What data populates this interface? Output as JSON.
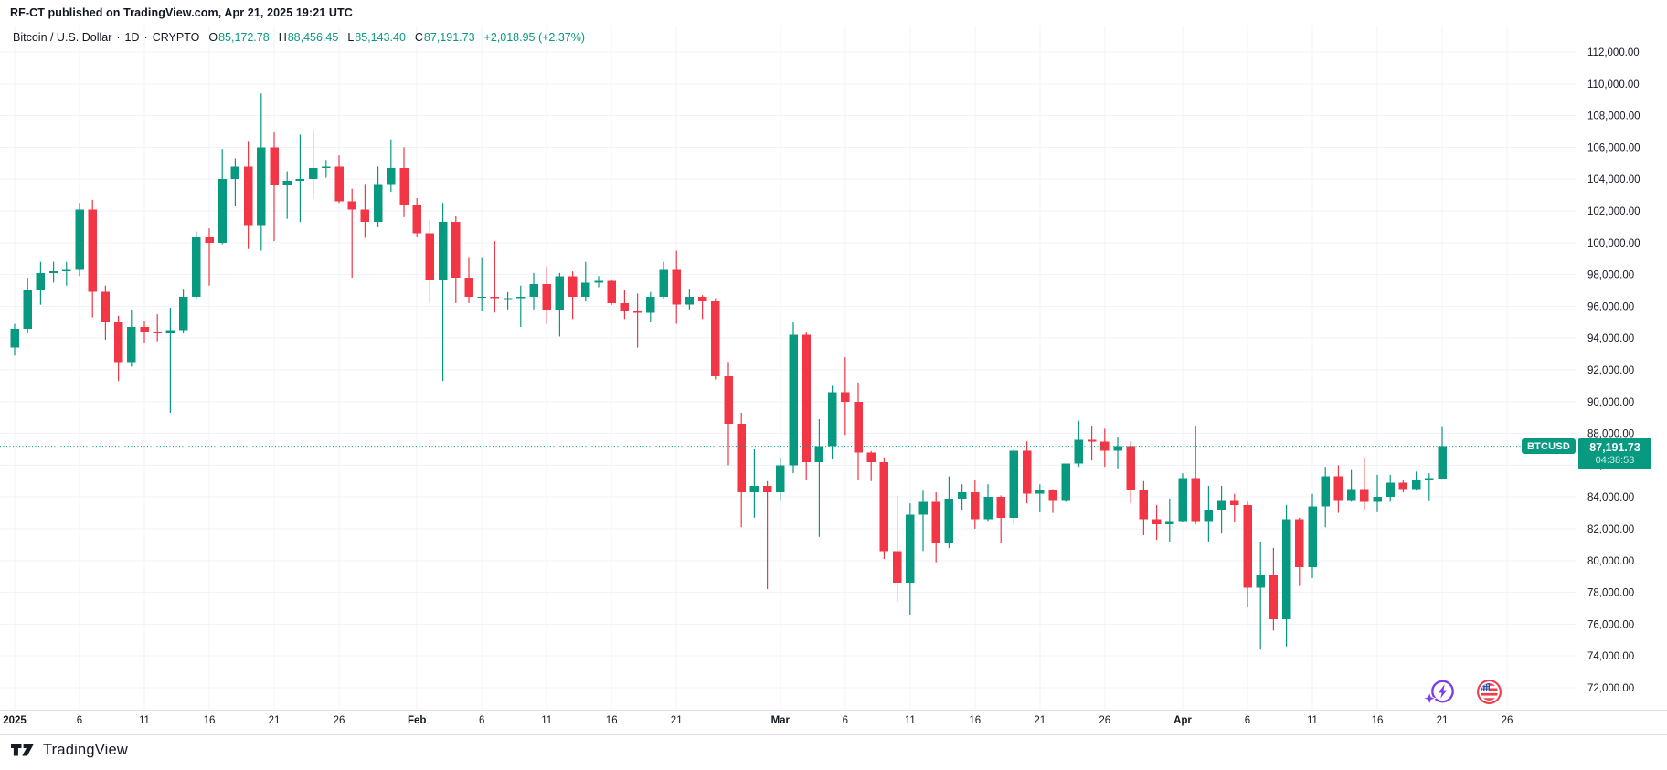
{
  "published_line": "RF-CT published on TradingView.com, Apr 21, 2025 19:21 UTC",
  "legend": {
    "symbol": "Bitcoin / U.S. Dollar",
    "separator": "·",
    "interval": "1D",
    "exchange": "CRYPTO",
    "o_label": "O",
    "o_value": "85,172.78",
    "h_label": "H",
    "h_value": "88,456.45",
    "l_label": "L",
    "l_value": "85,143.40",
    "c_label": "C",
    "c_value": "87,191.73",
    "change": "+2,018.95 (+2.37%)"
  },
  "price_label": {
    "symbol": "BTCUSD",
    "price": "87,191.73",
    "countdown": "04:38:53"
  },
  "footer": {
    "logo_text": "TradingView"
  },
  "icons": [
    {
      "name": "spark-lightning-stamp"
    },
    {
      "name": "us-flag-stamp"
    }
  ],
  "colors": {
    "up": "#089981",
    "down": "#f23645",
    "grid": "#f0f3fa",
    "border": "#e0e3eb",
    "text": "#131722",
    "accent": "#089981",
    "label_box": "#089981"
  },
  "chart_data": {
    "type": "candlestick",
    "title": "Bitcoin / U.S. Dollar",
    "symbol": "BTCUSD",
    "interval": "1D",
    "exchange": "CRYPTO",
    "last_price": 87191.73,
    "countdown": "04:38:53",
    "grid": true,
    "ylim": [
      72000,
      112000
    ],
    "y_tick_step": 2000,
    "x_range": "Jan 1 2025 - Apr 26 2025",
    "y_ticks": [
      {
        "price": 112000,
        "label": "112,000.00"
      },
      {
        "price": 110000,
        "label": "110,000.00"
      },
      {
        "price": 108000,
        "label": "108,000.00"
      },
      {
        "price": 106000,
        "label": "106,000.00"
      },
      {
        "price": 104000,
        "label": "104,000.00"
      },
      {
        "price": 102000,
        "label": "102,000.00"
      },
      {
        "price": 100000,
        "label": "100,000.00"
      },
      {
        "price": 98000,
        "label": "98,000.00"
      },
      {
        "price": 96000,
        "label": "96,000.00"
      },
      {
        "price": 94000,
        "label": "94,000.00"
      },
      {
        "price": 92000,
        "label": "92,000.00"
      },
      {
        "price": 90000,
        "label": "90,000.00"
      },
      {
        "price": 88000,
        "label": "88,000.00"
      },
      {
        "price": 86000,
        "label": "86,000.00"
      },
      {
        "price": 84000,
        "label": "84,000.00"
      },
      {
        "price": 82000,
        "label": "82,000.00"
      },
      {
        "price": 80000,
        "label": "80,000.00"
      },
      {
        "price": 78000,
        "label": "78,000.00"
      },
      {
        "price": 76000,
        "label": "76,000.00"
      },
      {
        "price": 74000,
        "label": "74,000.00"
      },
      {
        "price": 72000,
        "label": "72,000.00"
      }
    ],
    "x_ticks": [
      {
        "label": "2025",
        "day": 0,
        "weight": 700
      },
      {
        "label": "6",
        "day": 5,
        "weight": 400
      },
      {
        "label": "11",
        "day": 10,
        "weight": 400
      },
      {
        "label": "16",
        "day": 15,
        "weight": 400
      },
      {
        "label": "21",
        "day": 20,
        "weight": 400
      },
      {
        "label": "26",
        "day": 25,
        "weight": 400
      },
      {
        "label": "Feb",
        "day": 31,
        "weight": 600
      },
      {
        "label": "6",
        "day": 36,
        "weight": 400
      },
      {
        "label": "11",
        "day": 41,
        "weight": 400
      },
      {
        "label": "16",
        "day": 46,
        "weight": 400
      },
      {
        "label": "21",
        "day": 51,
        "weight": 400
      },
      {
        "label": "Mar",
        "day": 59,
        "weight": 600
      },
      {
        "label": "6",
        "day": 64,
        "weight": 400
      },
      {
        "label": "11",
        "day": 69,
        "weight": 400
      },
      {
        "label": "16",
        "day": 74,
        "weight": 400
      },
      {
        "label": "21",
        "day": 79,
        "weight": 400
      },
      {
        "label": "26",
        "day": 84,
        "weight": 400
      },
      {
        "label": "Apr",
        "day": 90,
        "weight": 600
      },
      {
        "label": "6",
        "day": 95,
        "weight": 400
      },
      {
        "label": "11",
        "day": 100,
        "weight": 400
      },
      {
        "label": "16",
        "day": 105,
        "weight": 400
      },
      {
        "label": "21",
        "day": 110,
        "weight": 400
      },
      {
        "label": "26",
        "day": 115,
        "weight": 400
      }
    ],
    "candles": [
      [
        "Jan 1",
        93400,
        94900,
        92900,
        94600
      ],
      [
        "Jan 2",
        94600,
        97800,
        94300,
        97000
      ],
      [
        "Jan 3",
        97000,
        98800,
        96100,
        98100
      ],
      [
        "Jan 4",
        98100,
        98800,
        97500,
        98200
      ],
      [
        "Jan 5",
        98200,
        98800,
        97300,
        98300
      ],
      [
        "Jan 6",
        98300,
        102500,
        97900,
        102100
      ],
      [
        "Jan 7",
        102100,
        102700,
        95300,
        96900
      ],
      [
        "Jan 8",
        96900,
        97300,
        93900,
        95000
      ],
      [
        "Jan 9",
        95000,
        95400,
        91300,
        92500
      ],
      [
        "Jan 10",
        92500,
        95800,
        92200,
        94700
      ],
      [
        "Jan 11",
        94700,
        95100,
        93700,
        94400
      ],
      [
        "Jan 12",
        94400,
        95500,
        93800,
        94300
      ],
      [
        "Jan 13",
        94300,
        95900,
        89300,
        94500
      ],
      [
        "Jan 14",
        94500,
        97100,
        94300,
        96600
      ],
      [
        "Jan 15",
        96600,
        100700,
        96500,
        100400
      ],
      [
        "Jan 16",
        100400,
        100900,
        97300,
        100000
      ],
      [
        "Jan 17",
        100000,
        105900,
        99900,
        104000
      ],
      [
        "Jan 18",
        104000,
        105300,
        102300,
        104800
      ],
      [
        "Jan 19",
        104800,
        106400,
        99600,
        101100
      ],
      [
        "Jan 20",
        101100,
        109400,
        99500,
        106000
      ],
      [
        "Jan 21",
        106000,
        107000,
        100100,
        103600
      ],
      [
        "Jan 22",
        103600,
        104500,
        101500,
        103900
      ],
      [
        "Jan 23",
        103900,
        106800,
        101300,
        104000
      ],
      [
        "Jan 24",
        104000,
        107100,
        102800,
        104700
      ],
      [
        "Jan 25",
        104700,
        105200,
        104100,
        104800
      ],
      [
        "Jan 26",
        104800,
        105500,
        102500,
        102600
      ],
      [
        "Jan 27",
        102600,
        103400,
        97800,
        102100
      ],
      [
        "Jan 28",
        102100,
        103700,
        100300,
        101300
      ],
      [
        "Jan 29",
        101300,
        104800,
        101000,
        103700
      ],
      [
        "Jan 30",
        103700,
        106500,
        103200,
        104700
      ],
      [
        "Jan 31",
        104700,
        106000,
        101600,
        102400
      ],
      [
        "Feb 1",
        102400,
        102800,
        100400,
        100600
      ],
      [
        "Feb 2",
        100600,
        101400,
        96200,
        97700
      ],
      [
        "Feb 3",
        97700,
        102500,
        91300,
        101300
      ],
      [
        "Feb 4",
        101300,
        101700,
        96200,
        97800
      ],
      [
        "Feb 5",
        97800,
        99100,
        96200,
        96600
      ],
      [
        "Feb 6",
        96600,
        99100,
        95700,
        96600
      ],
      [
        "Feb 7",
        96600,
        100100,
        95600,
        96500
      ],
      [
        "Feb 8",
        96500,
        96900,
        95800,
        96500
      ],
      [
        "Feb 9",
        96500,
        97300,
        94700,
        96600
      ],
      [
        "Feb 10",
        96600,
        98100,
        95800,
        97400
      ],
      [
        "Feb 11",
        97400,
        98500,
        94900,
        95800
      ],
      [
        "Feb 12",
        95800,
        98100,
        94100,
        97900
      ],
      [
        "Feb 13",
        97900,
        98200,
        95200,
        96600
      ],
      [
        "Feb 14",
        96600,
        98800,
        96300,
        97500
      ],
      [
        "Feb 15",
        97500,
        97900,
        97200,
        97600
      ],
      [
        "Feb 16",
        97600,
        97700,
        96100,
        96200
      ],
      [
        "Feb 17",
        96200,
        97000,
        95200,
        95700
      ],
      [
        "Feb 18",
        95700,
        96800,
        93400,
        95600
      ],
      [
        "Feb 19",
        95600,
        96900,
        95000,
        96600
      ],
      [
        "Feb 20",
        96600,
        98800,
        96500,
        98300
      ],
      [
        "Feb 21",
        98300,
        99500,
        94900,
        96100
      ],
      [
        "Feb 22",
        96100,
        97100,
        95800,
        96600
      ],
      [
        "Feb 23",
        96600,
        96700,
        95200,
        96300
      ],
      [
        "Feb 24",
        96300,
        96500,
        91400,
        91600
      ],
      [
        "Feb 25",
        91600,
        92500,
        86000,
        88600
      ],
      [
        "Feb 26",
        88600,
        89300,
        82100,
        84300
      ],
      [
        "Feb 27",
        84300,
        87000,
        82700,
        84700
      ],
      [
        "Feb 28",
        84700,
        85000,
        78200,
        84300
      ],
      [
        "Mar 1",
        84300,
        86500,
        83800,
        86000
      ],
      [
        "Mar 2",
        86000,
        95000,
        85500,
        94200
      ],
      [
        "Mar 3",
        94200,
        94400,
        85100,
        86200
      ],
      [
        "Mar 4",
        86200,
        88900,
        81500,
        87200
      ],
      [
        "Mar 5",
        87200,
        91000,
        86400,
        90600
      ],
      [
        "Mar 6",
        90600,
        92800,
        87900,
        90000
      ],
      [
        "Mar 7",
        90000,
        91200,
        85100,
        86800
      ],
      [
        "Mar 8",
        86800,
        86900,
        85000,
        86200
      ],
      [
        "Mar 9",
        86200,
        86500,
        80100,
        80600
      ],
      [
        "Mar 10",
        80600,
        84100,
        77400,
        78600
      ],
      [
        "Mar 11",
        78600,
        83600,
        76600,
        82900
      ],
      [
        "Mar 12",
        82900,
        84400,
        80600,
        83700
      ],
      [
        "Mar 13",
        83700,
        84300,
        79900,
        81100
      ],
      [
        "Mar 14",
        81100,
        85300,
        80800,
        83900
      ],
      [
        "Mar 15",
        83900,
        84800,
        83200,
        84300
      ],
      [
        "Mar 16",
        84300,
        85100,
        82000,
        82600
      ],
      [
        "Mar 17",
        82600,
        84800,
        82500,
        84000
      ],
      [
        "Mar 18",
        84000,
        84100,
        81100,
        82700
      ],
      [
        "Mar 19",
        82700,
        87000,
        82300,
        86900
      ],
      [
        "Mar 20",
        86900,
        87500,
        83600,
        84200
      ],
      [
        "Mar 21",
        84200,
        84800,
        83100,
        84400
      ],
      [
        "Mar 22",
        84400,
        84500,
        83000,
        83800
      ],
      [
        "Mar 23",
        83800,
        86100,
        83700,
        86100
      ],
      [
        "Mar 24",
        86100,
        88800,
        85900,
        87600
      ],
      [
        "Mar 25",
        87600,
        88500,
        86300,
        87500
      ],
      [
        "Mar 26",
        87500,
        88300,
        85900,
        86900
      ],
      [
        "Mar 27",
        86900,
        87800,
        85800,
        87200
      ],
      [
        "Mar 28",
        87200,
        87500,
        83600,
        84400
      ],
      [
        "Mar 29",
        84400,
        85000,
        81600,
        82600
      ],
      [
        "Mar 30",
        82600,
        83500,
        81300,
        82300
      ],
      [
        "Mar 31",
        82300,
        83900,
        81200,
        82500
      ],
      [
        "Apr 1",
        82500,
        85500,
        82400,
        85200
      ],
      [
        "Apr 2",
        85200,
        88500,
        82300,
        82500
      ],
      [
        "Apr 3",
        82500,
        84700,
        81200,
        83200
      ],
      [
        "Apr 4",
        83200,
        84700,
        81700,
        83800
      ],
      [
        "Apr 5",
        83800,
        84200,
        82400,
        83500
      ],
      [
        "Apr 6",
        83500,
        83700,
        77100,
        78300
      ],
      [
        "Apr 7",
        78300,
        81200,
        74400,
        79100
      ],
      [
        "Apr 8",
        79100,
        80800,
        75600,
        76300
      ],
      [
        "Apr 9",
        76300,
        83500,
        74600,
        82600
      ],
      [
        "Apr 10",
        82600,
        82700,
        78400,
        79600
      ],
      [
        "Apr 11",
        79600,
        84200,
        78900,
        83400
      ],
      [
        "Apr 12",
        83400,
        85900,
        82100,
        85300
      ],
      [
        "Apr 13",
        85300,
        86000,
        83000,
        83800
      ],
      [
        "Apr 14",
        83800,
        85700,
        83700,
        84500
      ],
      [
        "Apr 15",
        84500,
        86500,
        83200,
        83700
      ],
      [
        "Apr 16",
        83700,
        85400,
        83100,
        84000
      ],
      [
        "Apr 17",
        84000,
        85400,
        83700,
        84900
      ],
      [
        "Apr 18",
        84900,
        85100,
        84300,
        84500
      ],
      [
        "Apr 19",
        84500,
        85600,
        84400,
        85100
      ],
      [
        "Apr 20",
        85100,
        85500,
        83800,
        85200
      ],
      [
        "Apr 21",
        85172.78,
        88456.45,
        85143.4,
        87191.73
      ]
    ]
  }
}
